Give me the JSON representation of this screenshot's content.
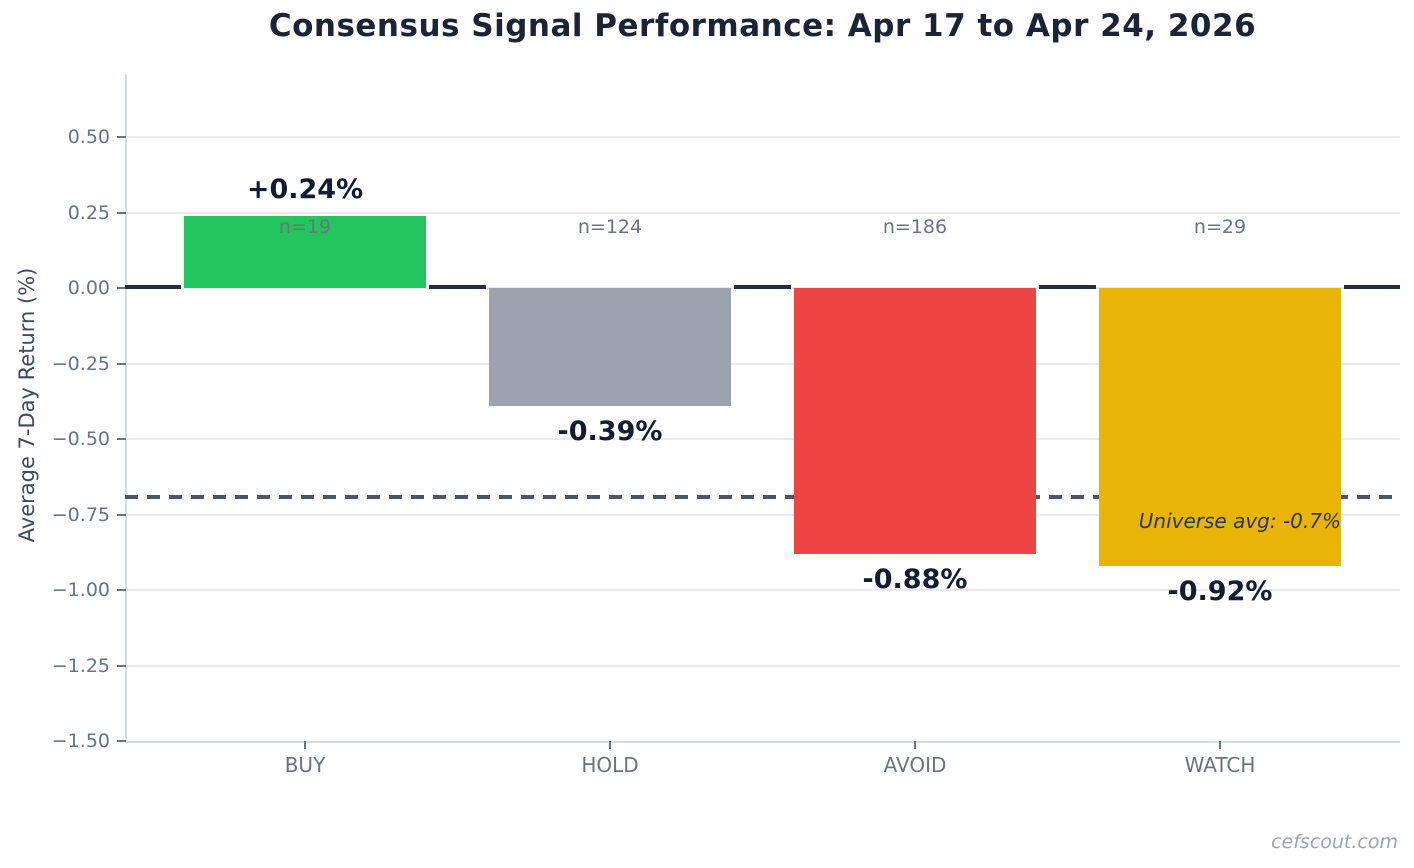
{
  "title": "Consensus Signal Performance: Apr 17 to Apr 24, 2026",
  "watermark": "cefscout.com",
  "colors": {
    "background": "#ffffff",
    "title_text": "#1b2437",
    "value_text": "#121d33",
    "muted_text": "#6b7280",
    "ytick_text": "#64748b",
    "ylabel_text": "#3f4a5c",
    "reference_text": "#2b3648",
    "watermark_text": "#9ba4b5",
    "grid": "#e8eaee",
    "spine": "#d7dce3",
    "zero_line": "#232e44",
    "dashed_line": "#4b5563"
  },
  "chart_data": {
    "type": "bar",
    "title": "Consensus Signal Performance: Apr 17 to Apr 24, 2026",
    "xlabel": "",
    "ylabel": "Average 7-Day Return (%)",
    "categories": [
      "BUY",
      "HOLD",
      "AVOID",
      "WATCH"
    ],
    "values": [
      0.24,
      -0.39,
      -0.88,
      -0.92
    ],
    "value_labels": [
      "+0.24%",
      "-0.39%",
      "-0.88%",
      "-0.92%"
    ],
    "counts": [
      19,
      124,
      186,
      29
    ],
    "count_labels": [
      "n=19",
      "n=124",
      "n=186",
      "n=29"
    ],
    "bar_colors": [
      "#22c55e",
      "#9ca3af",
      "#ef4444",
      "#eab308"
    ],
    "ylim": [
      -1.5,
      0.71
    ],
    "yticks": [
      {
        "value": 0.5,
        "label": "0.50"
      },
      {
        "value": 0.25,
        "label": "0.25"
      },
      {
        "value": 0.0,
        "label": "0.00"
      },
      {
        "value": -0.25,
        "label": "−0.25"
      },
      {
        "value": -0.5,
        "label": "−0.50"
      },
      {
        "value": -0.75,
        "label": "−0.75"
      },
      {
        "value": -1.0,
        "label": "−1.00"
      },
      {
        "value": -1.25,
        "label": "−1.25"
      },
      {
        "value": -1.5,
        "label": "−1.50"
      }
    ],
    "grid": true,
    "legend": false,
    "zero_line": 0,
    "reference_line": {
      "value": -0.7,
      "label": "Universe avg: -0.7%",
      "style": "dashed"
    }
  }
}
